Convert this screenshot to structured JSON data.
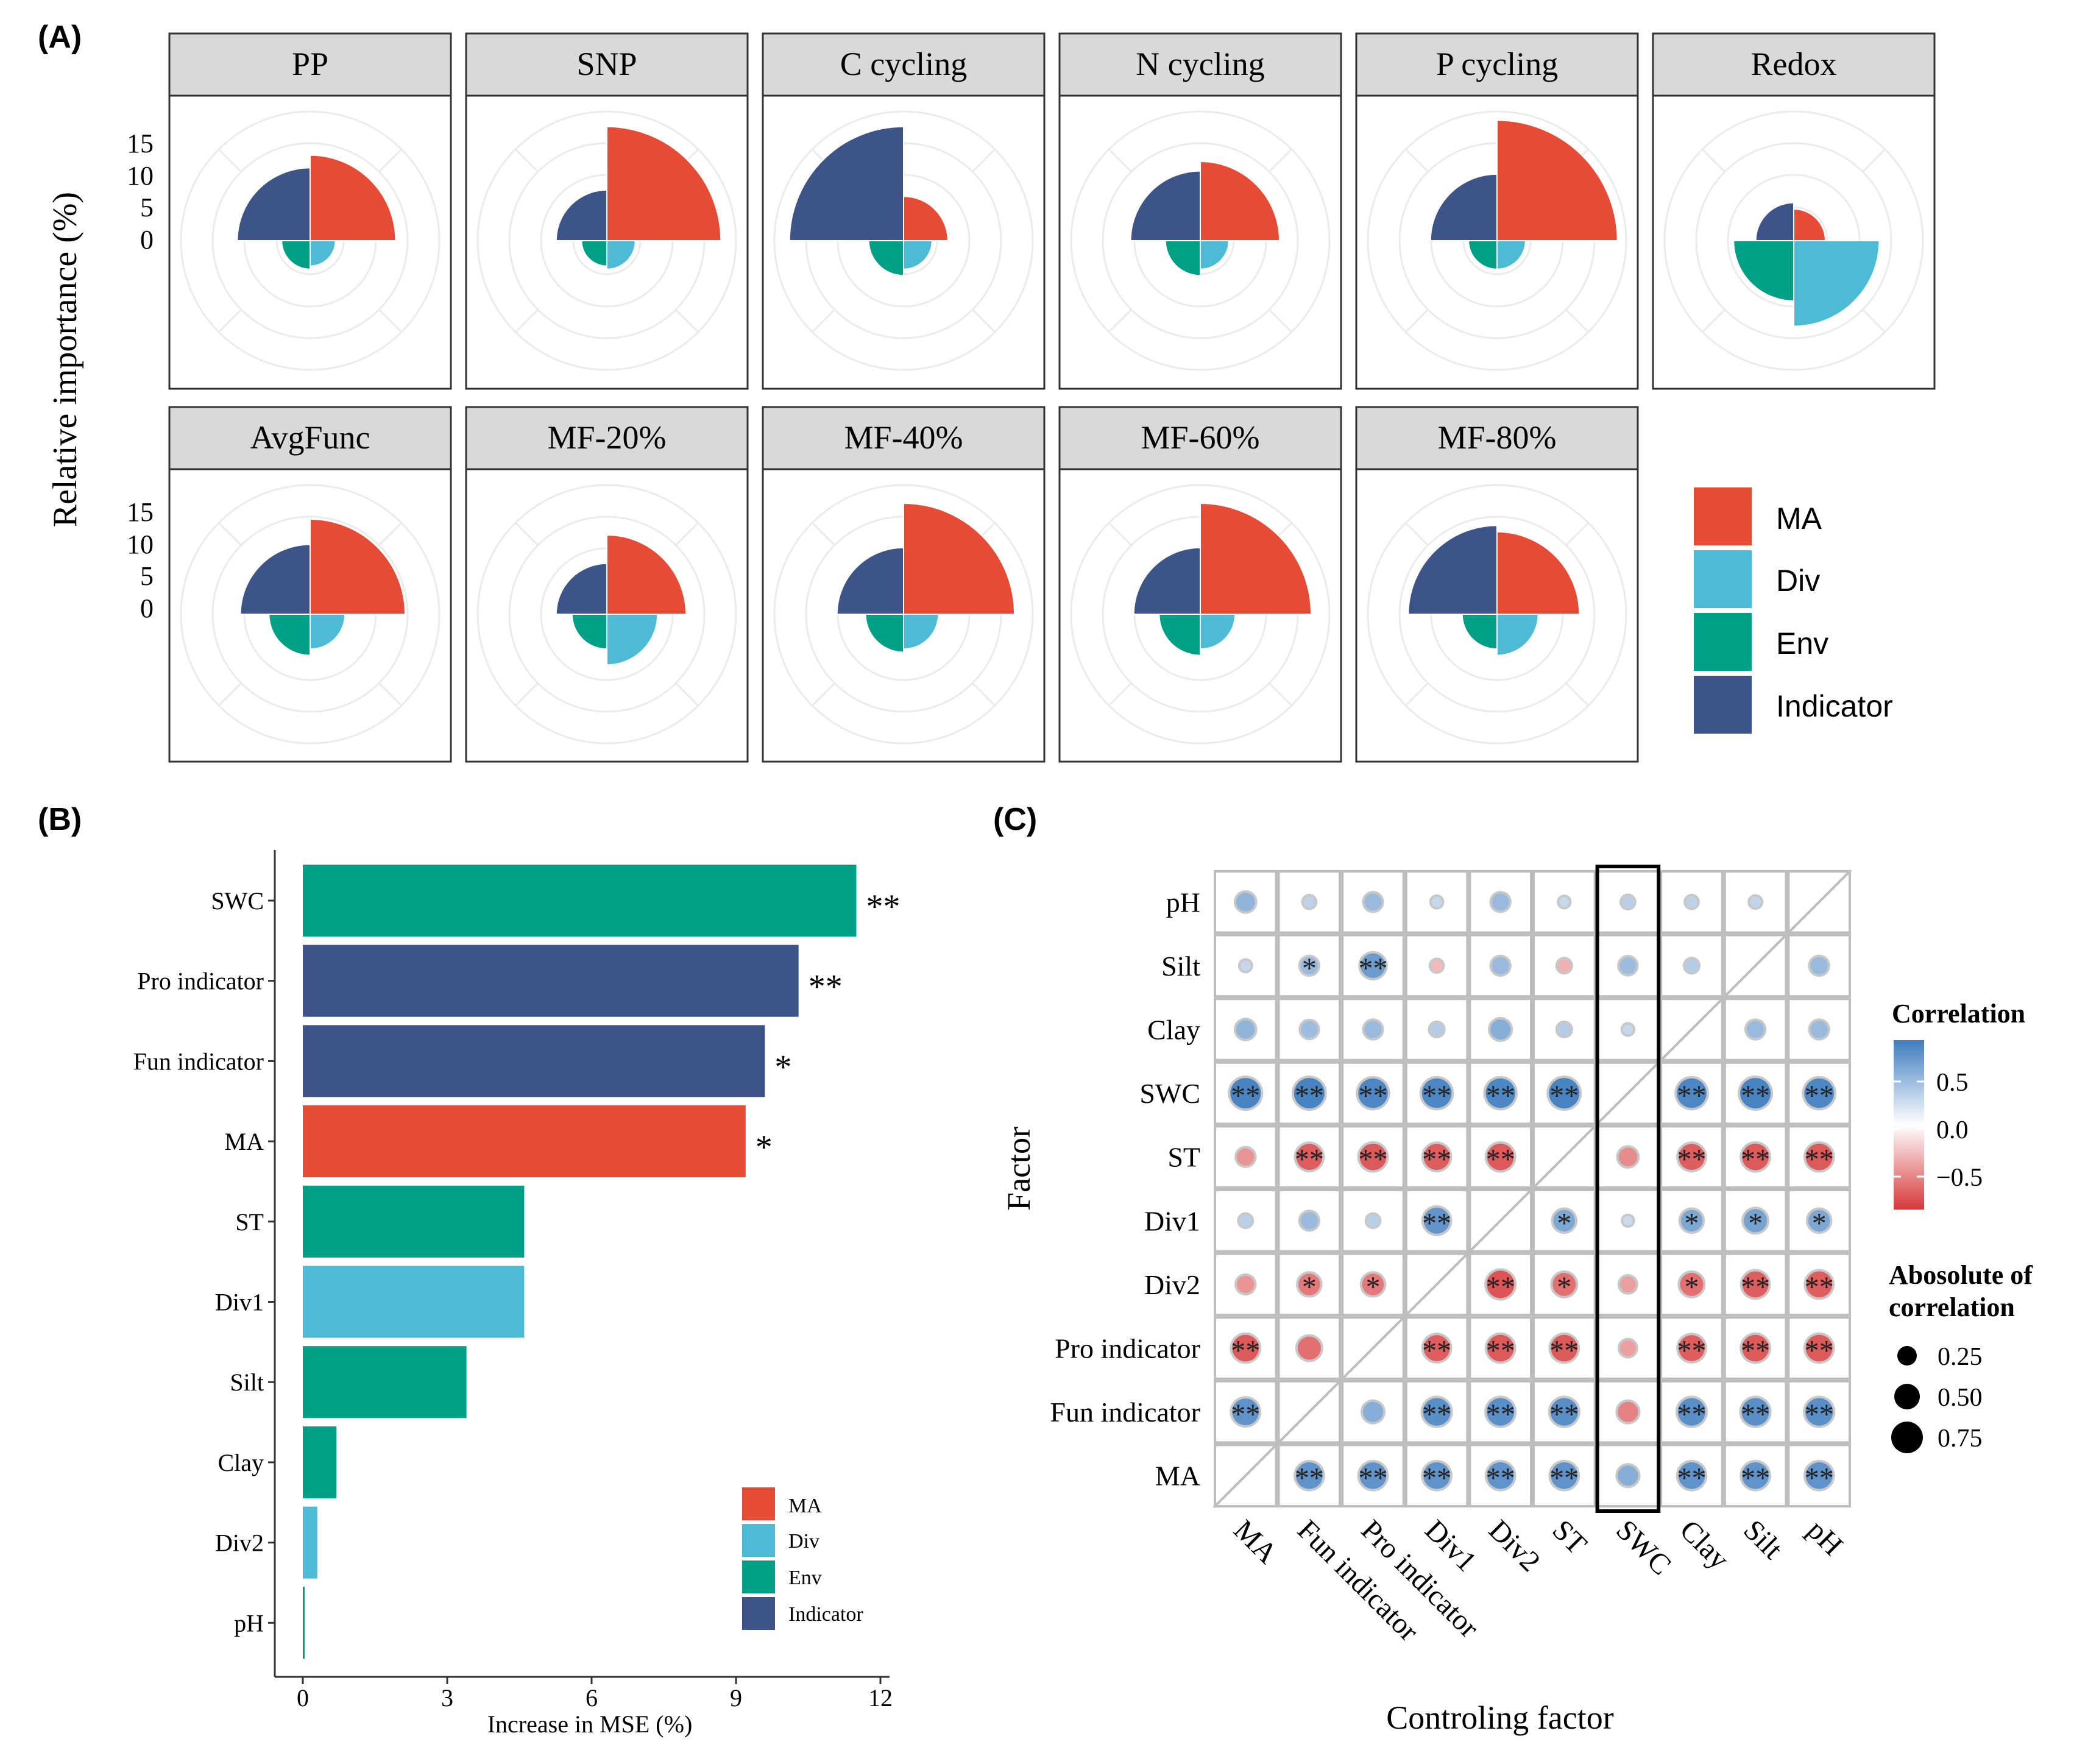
{
  "colors": {
    "MA": "#E64B35",
    "Div": "#4DBBD5",
    "Env": "#00A087",
    "Indicator": "#3C5488",
    "strip_bg": "#D9D9D9",
    "panel_border": "#333333",
    "grid": "#EBEBEB",
    "corr_pos": "#3F7DBF",
    "corr_neg": "#D6383A"
  },
  "panel_labels": {
    "A": "(A)",
    "B": "(B)",
    "C": "(C)"
  },
  "panel_a": {
    "ylabel": "Relative importance (%)",
    "y_ticks": [
      "15",
      "10",
      "5",
      "0"
    ],
    "legend": [
      {
        "key": "MA",
        "label": "MA"
      },
      {
        "key": "Div",
        "label": "Div"
      },
      {
        "key": "Env",
        "label": "Env"
      },
      {
        "key": "Indicator",
        "label": "Indicator"
      }
    ]
  },
  "panel_b": {
    "xlabel": "Increase in MSE (%)",
    "x_ticks": [
      "0",
      "3",
      "6",
      "9",
      "12"
    ],
    "legend": [
      {
        "key": "MA",
        "label": "MA"
      },
      {
        "key": "Div",
        "label": "Div"
      },
      {
        "key": "Env",
        "label": "Env"
      },
      {
        "key": "Indicator",
        "label": "Indicator"
      }
    ]
  },
  "panel_c": {
    "xlabel": "Controling factor",
    "ylabel": "Factor",
    "legend_title_color": "Correlation",
    "color_ticks": [
      "0.5",
      "0.0",
      "−0.5"
    ],
    "legend_title_size_line1": "Abosolute of",
    "legend_title_size_line2": "correlation",
    "size_labels": [
      "0.25",
      "0.50",
      "0.75"
    ]
  },
  "chart_data": [
    {
      "type": "polar-bar",
      "panel": "A",
      "ylabel": "Relative importance (%)",
      "r_ticks": [
        0,
        5,
        10,
        15
      ],
      "categories": [
        "MA",
        "Div",
        "Env",
        "Indicator"
      ],
      "facets": [
        {
          "name": "PP",
          "values": {
            "MA": 13.5,
            "Div": 4.0,
            "Env": 4.5,
            "Indicator": 11.5
          }
        },
        {
          "name": "SNP",
          "values": {
            "MA": 18.0,
            "Div": 4.5,
            "Env": 4.0,
            "Indicator": 8.0
          }
        },
        {
          "name": "C cycling",
          "values": {
            "MA": 7.0,
            "Div": 4.5,
            "Env": 5.5,
            "Indicator": 18.0
          }
        },
        {
          "name": "N cycling",
          "values": {
            "MA": 12.5,
            "Div": 4.5,
            "Env": 5.5,
            "Indicator": 11.0
          }
        },
        {
          "name": "P cycling",
          "values": {
            "MA": 19.0,
            "Div": 4.5,
            "Env": 4.5,
            "Indicator": 10.5
          }
        },
        {
          "name": "Redox",
          "values": {
            "MA": 5.0,
            "Div": 13.5,
            "Env": 9.5,
            "Indicator": 6.0
          }
        },
        {
          "name": "AvgFunc",
          "values": {
            "MA": 15.0,
            "Div": 5.5,
            "Env": 6.5,
            "Indicator": 11.0
          }
        },
        {
          "name": "MF-20%",
          "values": {
            "MA": 12.5,
            "Div": 8.0,
            "Env": 5.5,
            "Indicator": 8.0
          }
        },
        {
          "name": "MF-40%",
          "values": {
            "MA": 17.5,
            "Div": 5.5,
            "Env": 6.0,
            "Indicator": 10.5
          }
        },
        {
          "name": "MF-60%",
          "values": {
            "MA": 17.5,
            "Div": 5.5,
            "Env": 6.5,
            "Indicator": 10.5
          }
        },
        {
          "name": "MF-80%",
          "values": {
            "MA": 13.0,
            "Div": 6.5,
            "Env": 5.5,
            "Indicator": 14.0
          }
        }
      ]
    },
    {
      "type": "bar",
      "panel": "B",
      "orientation": "horizontal",
      "xlabel": "Increase in MSE (%)",
      "xlim": [
        0,
        12
      ],
      "x_ticks": [
        0,
        3,
        6,
        9,
        12
      ],
      "categories": [
        "SWC",
        "Pro indicator",
        "Fun indicator",
        "MA",
        "ST",
        "Div1",
        "Silt",
        "Clay",
        "Div2",
        "pH"
      ],
      "values": [
        11.5,
        10.3,
        9.6,
        9.2,
        4.6,
        4.6,
        3.4,
        0.7,
        0.3,
        0.03
      ],
      "groups": [
        "Env",
        "Indicator",
        "Indicator",
        "MA",
        "Env",
        "Div",
        "Env",
        "Env",
        "Div",
        "Env"
      ],
      "significance": [
        "**",
        "**",
        "*",
        "*",
        "",
        "",
        "",
        "",
        "",
        ""
      ]
    },
    {
      "type": "heatmap",
      "panel": "C",
      "xlabel": "Controling factor",
      "ylabel": "Factor",
      "columns": [
        "MA",
        "Fun indicator",
        "Pro indicator",
        "Div1",
        "Div2",
        "ST",
        "SWC",
        "Clay",
        "Silt",
        "pH"
      ],
      "rows": [
        "pH",
        "Silt",
        "Clay",
        "SWC",
        "ST",
        "Div1",
        "Div2",
        "Pro  indicator",
        "Fun indicator",
        "MA"
      ],
      "color_range": [
        -0.8,
        0.8
      ],
      "highlight_column": "SWC",
      "cells": [
        {
          "row": "pH",
          "col": "MA",
          "r": 0.35,
          "sig": ""
        },
        {
          "row": "pH",
          "col": "Fun indicator",
          "r": 0.1,
          "sig": ""
        },
        {
          "row": "pH",
          "col": "Pro indicator",
          "r": 0.3,
          "sig": ""
        },
        {
          "row": "pH",
          "col": "Div1",
          "r": 0.06,
          "sig": ""
        },
        {
          "row": "pH",
          "col": "Div2",
          "r": 0.3,
          "sig": ""
        },
        {
          "row": "pH",
          "col": "ST",
          "r": 0.05,
          "sig": ""
        },
        {
          "row": "pH",
          "col": "SWC",
          "r": 0.12,
          "sig": ""
        },
        {
          "row": "pH",
          "col": "Clay",
          "r": 0.1,
          "sig": ""
        },
        {
          "row": "pH",
          "col": "Silt",
          "r": 0.08,
          "sig": ""
        },
        {
          "row": "Silt",
          "col": "MA",
          "r": 0.06,
          "sig": ""
        },
        {
          "row": "Silt",
          "col": "Fun indicator",
          "r": 0.3,
          "sig": "*"
        },
        {
          "row": "Silt",
          "col": "Pro indicator",
          "r": 0.55,
          "sig": "**"
        },
        {
          "row": "Silt",
          "col": "Div1",
          "r": -0.1,
          "sig": ""
        },
        {
          "row": "Silt",
          "col": "Div2",
          "r": 0.3,
          "sig": ""
        },
        {
          "row": "Silt",
          "col": "ST",
          "r": -0.15,
          "sig": ""
        },
        {
          "row": "Silt",
          "col": "SWC",
          "r": 0.28,
          "sig": ""
        },
        {
          "row": "Silt",
          "col": "Clay",
          "r": 0.15,
          "sig": ""
        },
        {
          "row": "Silt",
          "col": "pH",
          "r": 0.3,
          "sig": ""
        },
        {
          "row": "Clay",
          "col": "MA",
          "r": 0.35,
          "sig": ""
        },
        {
          "row": "Clay",
          "col": "Fun indicator",
          "r": 0.28,
          "sig": ""
        },
        {
          "row": "Clay",
          "col": "Pro indicator",
          "r": 0.3,
          "sig": ""
        },
        {
          "row": "Clay",
          "col": "Div1",
          "r": 0.15,
          "sig": ""
        },
        {
          "row": "Clay",
          "col": "Div2",
          "r": 0.4,
          "sig": ""
        },
        {
          "row": "Clay",
          "col": "ST",
          "r": 0.15,
          "sig": ""
        },
        {
          "row": "Clay",
          "col": "SWC",
          "r": 0.05,
          "sig": ""
        },
        {
          "row": "Clay",
          "col": "Silt",
          "r": 0.3,
          "sig": ""
        },
        {
          "row": "Clay",
          "col": "pH",
          "r": 0.3,
          "sig": ""
        },
        {
          "row": "SWC",
          "col": "MA",
          "r": 0.75,
          "sig": "**"
        },
        {
          "row": "SWC",
          "col": "Fun indicator",
          "r": 0.75,
          "sig": "**"
        },
        {
          "row": "SWC",
          "col": "Pro indicator",
          "r": 0.72,
          "sig": "**"
        },
        {
          "row": "SWC",
          "col": "Div1",
          "r": 0.72,
          "sig": "**"
        },
        {
          "row": "SWC",
          "col": "Div2",
          "r": 0.72,
          "sig": "**"
        },
        {
          "row": "SWC",
          "col": "ST",
          "r": 0.75,
          "sig": "**"
        },
        {
          "row": "SWC",
          "col": "Clay",
          "r": 0.72,
          "sig": "**"
        },
        {
          "row": "SWC",
          "col": "Silt",
          "r": 0.75,
          "sig": "**"
        },
        {
          "row": "SWC",
          "col": "pH",
          "r": 0.72,
          "sig": "**"
        },
        {
          "row": "ST",
          "col": "MA",
          "r": -0.3,
          "sig": ""
        },
        {
          "row": "ST",
          "col": "Fun indicator",
          "r": -0.6,
          "sig": "**"
        },
        {
          "row": "ST",
          "col": "Pro indicator",
          "r": -0.62,
          "sig": "**"
        },
        {
          "row": "ST",
          "col": "Div1",
          "r": -0.6,
          "sig": "**"
        },
        {
          "row": "ST",
          "col": "Div2",
          "r": -0.62,
          "sig": "**"
        },
        {
          "row": "ST",
          "col": "SWC",
          "r": -0.35,
          "sig": ""
        },
        {
          "row": "ST",
          "col": "Clay",
          "r": -0.6,
          "sig": "**"
        },
        {
          "row": "ST",
          "col": "Silt",
          "r": -0.62,
          "sig": "**"
        },
        {
          "row": "ST",
          "col": "pH",
          "r": -0.62,
          "sig": "**"
        },
        {
          "row": "Div1",
          "col": "MA",
          "r": 0.12,
          "sig": ""
        },
        {
          "row": "Div1",
          "col": "Fun indicator",
          "r": 0.3,
          "sig": ""
        },
        {
          "row": "Div1",
          "col": "Pro indicator",
          "r": 0.12,
          "sig": ""
        },
        {
          "row": "Div1",
          "col": "Div1",
          "r": 0.6,
          "sig": "**"
        },
        {
          "row": "Div1",
          "col": "ST",
          "r": 0.45,
          "sig": "*"
        },
        {
          "row": "Div1",
          "col": "SWC",
          "r": 0.03,
          "sig": ""
        },
        {
          "row": "Div1",
          "col": "Clay",
          "r": 0.45,
          "sig": "*"
        },
        {
          "row": "Div1",
          "col": "Silt",
          "r": 0.5,
          "sig": "*"
        },
        {
          "row": "Div1",
          "col": "pH",
          "r": 0.45,
          "sig": "*"
        },
        {
          "row": "Div2",
          "col": "MA",
          "r": -0.3,
          "sig": ""
        },
        {
          "row": "Div2",
          "col": "Fun indicator",
          "r": -0.45,
          "sig": "*"
        },
        {
          "row": "Div2",
          "col": "Pro indicator",
          "r": -0.45,
          "sig": "*"
        },
        {
          "row": "Div2",
          "col": "Div2",
          "r": -0.65,
          "sig": "**"
        },
        {
          "row": "Div2",
          "col": "ST",
          "r": -0.5,
          "sig": "*"
        },
        {
          "row": "Div2",
          "col": "SWC",
          "r": -0.25,
          "sig": ""
        },
        {
          "row": "Div2",
          "col": "Clay",
          "r": -0.5,
          "sig": "*"
        },
        {
          "row": "Div2",
          "col": "Silt",
          "r": -0.6,
          "sig": "**"
        },
        {
          "row": "Div2",
          "col": "pH",
          "r": -0.6,
          "sig": "**"
        },
        {
          "row": "Pro  indicator",
          "col": "MA",
          "r": -0.62,
          "sig": "**"
        },
        {
          "row": "Pro  indicator",
          "col": "Fun indicator",
          "r": -0.5,
          "sig": ""
        },
        {
          "row": "Pro  indicator",
          "col": "Div1",
          "r": -0.6,
          "sig": "**"
        },
        {
          "row": "Pro  indicator",
          "col": "Div2",
          "r": -0.62,
          "sig": "**"
        },
        {
          "row": "Pro  indicator",
          "col": "ST",
          "r": -0.62,
          "sig": "**"
        },
        {
          "row": "Pro  indicator",
          "col": "SWC",
          "r": -0.25,
          "sig": ""
        },
        {
          "row": "Pro  indicator",
          "col": "Clay",
          "r": -0.6,
          "sig": "**"
        },
        {
          "row": "Pro  indicator",
          "col": "Silt",
          "r": -0.62,
          "sig": "**"
        },
        {
          "row": "Pro  indicator",
          "col": "pH",
          "r": -0.62,
          "sig": "**"
        },
        {
          "row": "Fun indicator",
          "col": "MA",
          "r": 0.62,
          "sig": "**"
        },
        {
          "row": "Fun indicator",
          "col": "Pro indicator",
          "r": 0.4,
          "sig": ""
        },
        {
          "row": "Fun indicator",
          "col": "Div1",
          "r": 0.65,
          "sig": "**"
        },
        {
          "row": "Fun indicator",
          "col": "Div2",
          "r": 0.65,
          "sig": "**"
        },
        {
          "row": "Fun indicator",
          "col": "ST",
          "r": 0.65,
          "sig": "**"
        },
        {
          "row": "Fun indicator",
          "col": "SWC",
          "r": -0.4,
          "sig": ""
        },
        {
          "row": "Fun indicator",
          "col": "Clay",
          "r": 0.65,
          "sig": "**"
        },
        {
          "row": "Fun indicator",
          "col": "Silt",
          "r": 0.65,
          "sig": "**"
        },
        {
          "row": "Fun indicator",
          "col": "pH",
          "r": 0.65,
          "sig": "**"
        },
        {
          "row": "MA",
          "col": "Fun indicator",
          "r": 0.62,
          "sig": "**"
        },
        {
          "row": "MA",
          "col": "Pro indicator",
          "r": 0.62,
          "sig": "**"
        },
        {
          "row": "MA",
          "col": "Div1",
          "r": 0.62,
          "sig": "**"
        },
        {
          "row": "MA",
          "col": "Div2",
          "r": 0.62,
          "sig": "**"
        },
        {
          "row": "MA",
          "col": "ST",
          "r": 0.62,
          "sig": "**"
        },
        {
          "row": "MA",
          "col": "SWC",
          "r": 0.4,
          "sig": ""
        },
        {
          "row": "MA",
          "col": "Clay",
          "r": 0.62,
          "sig": "**"
        },
        {
          "row": "MA",
          "col": "Silt",
          "r": 0.62,
          "sig": "**"
        },
        {
          "row": "MA",
          "col": "pH",
          "r": 0.62,
          "sig": "**"
        }
      ]
    }
  ]
}
